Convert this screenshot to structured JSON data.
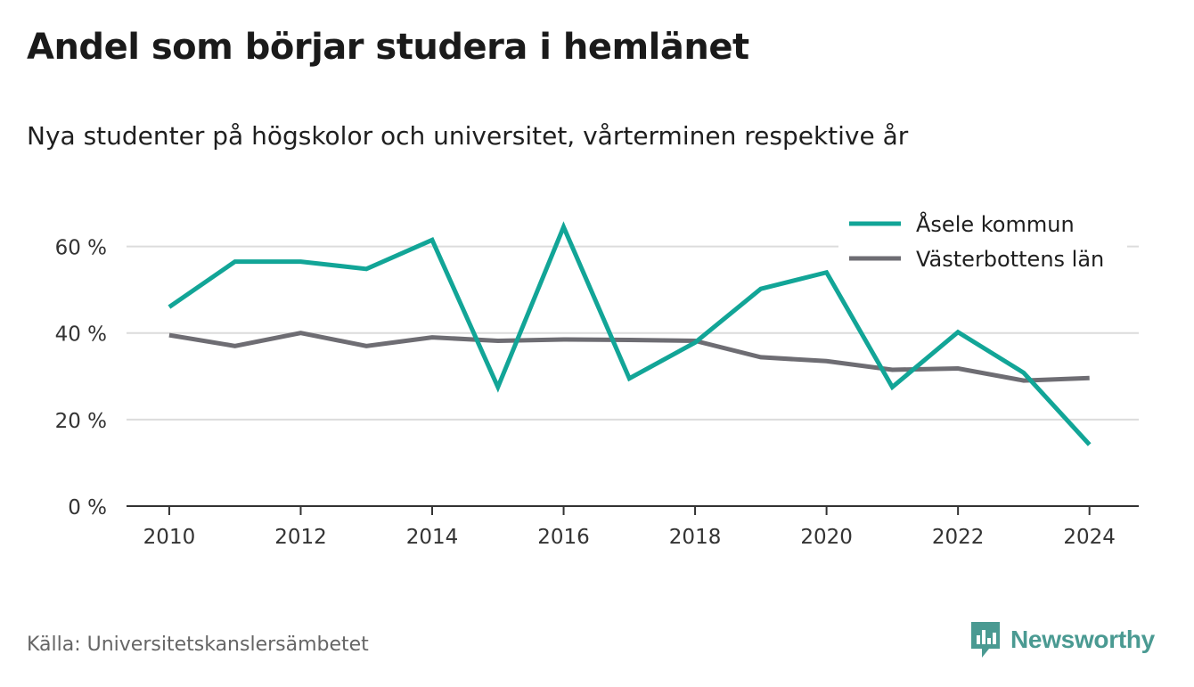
{
  "title": "Andel som börjar studera i hemlänet",
  "subtitle": "Nya studenter på högskolor och universitet, vårterminen respektive år",
  "source": "Källa: Universitetskanslersämbetet",
  "brand": "Newsworthy",
  "chart_data": {
    "type": "line",
    "x": [
      2010,
      2011,
      2012,
      2013,
      2014,
      2015,
      2016,
      2017,
      2018,
      2019,
      2020,
      2021,
      2022,
      2023,
      2024
    ],
    "series": [
      {
        "name": "Åsele kommun",
        "color": "#12a597",
        "values": [
          46,
          56.5,
          56.5,
          54.8,
          61.5,
          27.5,
          64.5,
          29.5,
          37.8,
          50.2,
          54,
          27.5,
          40.2,
          30.8,
          14.2
        ]
      },
      {
        "name": "Västerbottens län",
        "color": "#6e6d73",
        "values": [
          39.5,
          37,
          40,
          37,
          39,
          38.2,
          38.5,
          38.4,
          38.2,
          34.4,
          33.5,
          31.5,
          31.8,
          29,
          29.6
        ]
      }
    ],
    "xticks": [
      2010,
      2012,
      2014,
      2016,
      2018,
      2020,
      2022,
      2024
    ],
    "xtick_labels": [
      "2010",
      "2012",
      "2014",
      "2016",
      "2018",
      "2020",
      "2022",
      "2024"
    ],
    "yticks": [
      0,
      20,
      40,
      60
    ],
    "ytick_labels": [
      "0 %",
      "20 %",
      "40 %",
      "60 %"
    ],
    "ylim": [
      0,
      70
    ],
    "xlim": [
      2009.35,
      2024.75
    ],
    "grid": true,
    "legend_position": "top-right"
  }
}
